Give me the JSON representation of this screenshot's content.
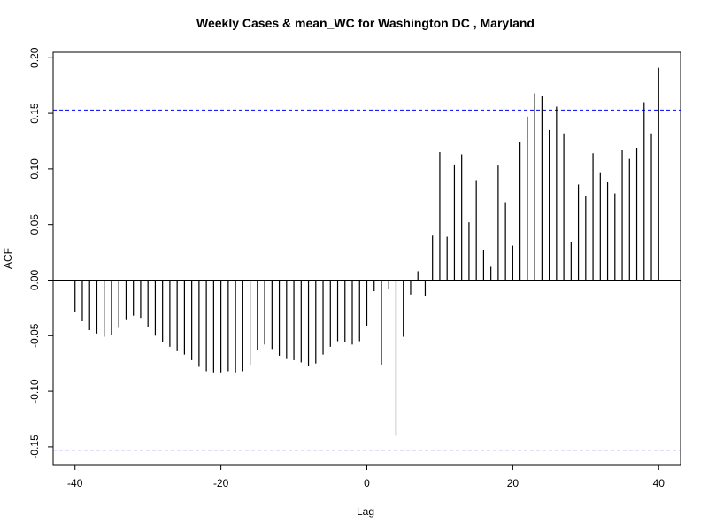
{
  "chart_data": {
    "type": "bar",
    "title": "Weekly Cases & mean_WC for Washington DC , Maryland",
    "xlabel": "Lag",
    "ylabel": "ACF",
    "xlim": [
      -43,
      43
    ],
    "ylim": [
      -0.166,
      0.205
    ],
    "x_ticks": [
      -40,
      -20,
      0,
      20,
      40
    ],
    "x_tick_labels": [
      "-40",
      "-20",
      "0",
      "20",
      "40"
    ],
    "y_ticks": [
      -0.15,
      -0.1,
      -0.05,
      0.0,
      0.05,
      0.1,
      0.15,
      0.2
    ],
    "y_tick_labels": [
      "-0.15",
      "-0.10",
      "-0.05",
      "0.00",
      "0.05",
      "0.10",
      "0.15",
      "0.20"
    ],
    "confidence_band": 0.153,
    "colors": {
      "bars": "#000000",
      "confidence": "#0000ff",
      "zero_line": "#000000",
      "frame": "#000000"
    },
    "x": [
      -40,
      -39,
      -38,
      -37,
      -36,
      -35,
      -34,
      -33,
      -32,
      -31,
      -30,
      -29,
      -28,
      -27,
      -26,
      -25,
      -24,
      -23,
      -22,
      -21,
      -20,
      -19,
      -18,
      -17,
      -16,
      -15,
      -14,
      -13,
      -12,
      -11,
      -10,
      -9,
      -8,
      -7,
      -6,
      -5,
      -4,
      -3,
      -2,
      -1,
      0,
      1,
      2,
      3,
      4,
      5,
      6,
      7,
      8,
      9,
      10,
      11,
      12,
      13,
      14,
      15,
      16,
      17,
      18,
      19,
      20,
      21,
      22,
      23,
      24,
      25,
      26,
      27,
      28,
      29,
      30,
      31,
      32,
      33,
      34,
      35,
      36,
      37,
      38,
      39,
      40
    ],
    "values": [
      -0.029,
      -0.037,
      -0.045,
      -0.048,
      -0.051,
      -0.049,
      -0.043,
      -0.036,
      -0.032,
      -0.034,
      -0.042,
      -0.05,
      -0.056,
      -0.06,
      -0.064,
      -0.067,
      -0.072,
      -0.078,
      -0.082,
      -0.083,
      -0.083,
      -0.082,
      -0.083,
      -0.082,
      -0.076,
      -0.063,
      -0.058,
      -0.062,
      -0.068,
      -0.071,
      -0.072,
      -0.074,
      -0.077,
      -0.075,
      -0.067,
      -0.06,
      -0.055,
      -0.056,
      -0.058,
      -0.055,
      -0.041,
      -0.01,
      -0.076,
      -0.008,
      -0.14,
      -0.051,
      -0.013,
      0.008,
      -0.014,
      0.04,
      0.115,
      0.039,
      0.104,
      0.113,
      0.052,
      0.09,
      0.027,
      0.012,
      0.103,
      0.07,
      0.031,
      0.124,
      0.147,
      0.168,
      0.166,
      0.135,
      0.156,
      0.132,
      0.034,
      0.086,
      0.076,
      0.114,
      0.097,
      0.088,
      0.078,
      0.117,
      0.109,
      0.119,
      0.16,
      0.132,
      0.191
    ]
  }
}
